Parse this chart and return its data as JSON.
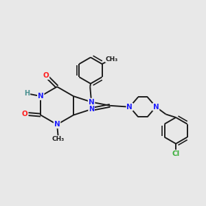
{
  "background_color": "#e8e8e8",
  "bond_color": "#1a1a1a",
  "bond_width": 1.4,
  "atom_colors": {
    "N": "#2020ff",
    "O": "#ff2020",
    "Cl": "#3db03d",
    "H": "#4a9090",
    "C": "#1a1a1a"
  },
  "font_size_atom": 7.5
}
